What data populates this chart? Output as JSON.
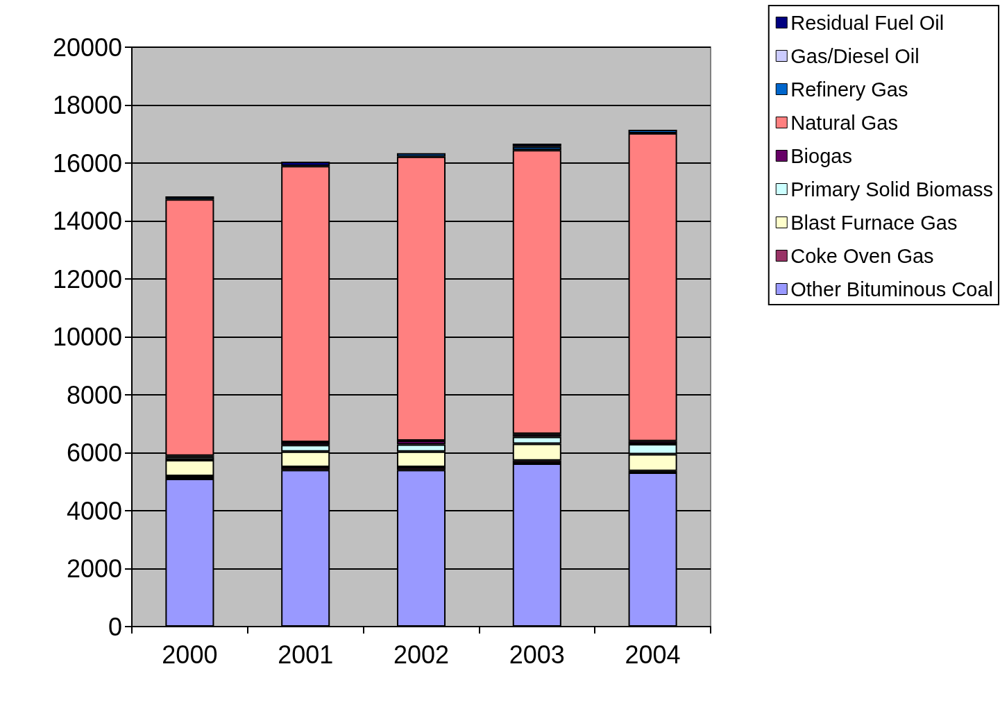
{
  "chart_data": {
    "type": "bar",
    "stacked": true,
    "categories": [
      "2000",
      "2001",
      "2002",
      "2003",
      "2004"
    ],
    "series": [
      {
        "name": "Other Bituminous Coal",
        "color": "#9999ff",
        "values": [
          5100,
          5410,
          5410,
          5630,
          5320
        ]
      },
      {
        "name": "Coke Oven Gas",
        "color": "#993366",
        "values": [
          100,
          100,
          100,
          100,
          50
        ]
      },
      {
        "name": "Blast Furnace Gas",
        "color": "#ffffcc",
        "values": [
          550,
          530,
          530,
          580,
          580
        ]
      },
      {
        "name": "Primary Solid Biomass",
        "color": "#ccffff",
        "values": [
          100,
          230,
          250,
          240,
          350
        ]
      },
      {
        "name": "Biogas",
        "color": "#660066",
        "values": [
          50,
          100,
          130,
          100,
          100
        ]
      },
      {
        "name": "Natural Gas",
        "color": "#ff8080",
        "values": [
          8850,
          9530,
          9800,
          9800,
          10630
        ]
      },
      {
        "name": "Refinery Gas",
        "color": "#0066cc",
        "values": [
          100,
          null,
          120,
          120,
          120
        ]
      },
      {
        "name": "Gas/Diesel Oil",
        "color": "#ccccff",
        "values": [
          null,
          null,
          null,
          null,
          null
        ]
      },
      {
        "name": "Residual Fuel Oil",
        "color": "#000080",
        "values": [
          null,
          150,
          null,
          100,
          null
        ]
      }
    ],
    "ylim": [
      0,
      20000
    ],
    "yticks": [
      0,
      2000,
      4000,
      6000,
      8000,
      10000,
      12000,
      14000,
      16000,
      18000,
      20000
    ],
    "grid": "y",
    "legend": "top right"
  }
}
